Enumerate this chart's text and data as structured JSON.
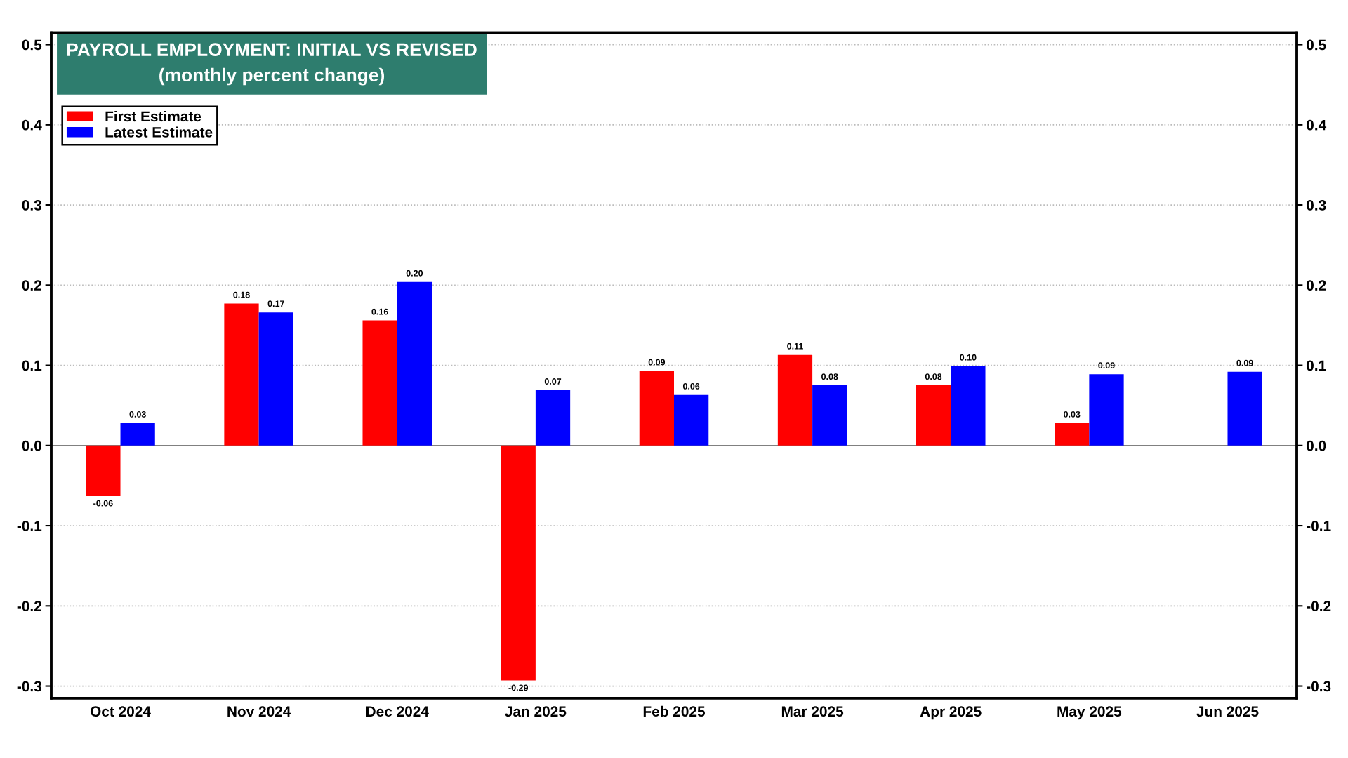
{
  "chart_data": {
    "type": "bar",
    "title": "PAYROLL EMPLOYMENT: INITIAL VS REVISED",
    "subtitle": "(monthly percent change)",
    "categories": [
      "Oct 2024",
      "Nov 2024",
      "Dec 2024",
      "Jan 2025",
      "Feb 2025",
      "Mar 2025",
      "Apr 2025",
      "May 2025",
      "Jun 2025"
    ],
    "series": [
      {
        "name": "First Estimate",
        "color": "#ff0000",
        "values": [
          -0.063,
          0.177,
          0.156,
          -0.293,
          0.093,
          0.113,
          0.075,
          0.028,
          null
        ],
        "value_labels": [
          "-0.06",
          "0.18",
          "0.16",
          "-0.29",
          "0.09",
          "0.11",
          "0.08",
          "0.03",
          null
        ]
      },
      {
        "name": "Latest Estimate",
        "color": "#0000ff",
        "values": [
          0.028,
          0.166,
          0.204,
          0.069,
          0.063,
          0.075,
          0.099,
          0.089,
          0.092
        ],
        "value_labels": [
          "0.03",
          "0.17",
          "0.20",
          "0.07",
          "0.06",
          "0.08",
          "0.10",
          "0.09",
          "0.09"
        ]
      }
    ],
    "ylim": [
      -0.315,
      0.515
    ],
    "yticks": [
      -0.3,
      -0.2,
      -0.1,
      {
        "value": 0,
        "label": "0.0"
      },
      0.1,
      0.2,
      0.3,
      0.4,
      0.5
    ],
    "y2lim": [
      -0.315,
      0.515
    ],
    "y2ticks": [
      -0.3,
      -0.2,
      -0.1,
      {
        "value": 0,
        "label": "0.0"
      },
      0.1,
      0.2,
      0.3,
      0.4,
      0.5
    ],
    "ref_lines": [
      {
        "axis": "y",
        "value": 0.0,
        "color": "#808080"
      }
    ],
    "grid": true,
    "legend": "top left"
  }
}
